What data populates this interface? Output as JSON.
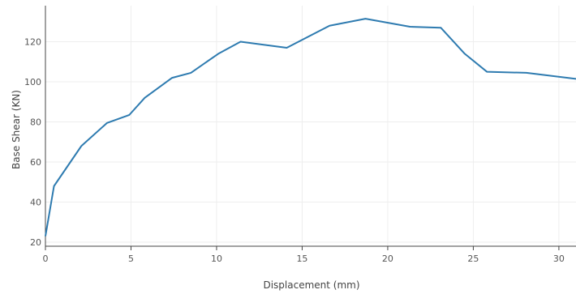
{
  "chart_data": {
    "type": "line",
    "title": "",
    "xlabel": "Displacement (mm)",
    "ylabel": "Base Shear (KN)",
    "xlim": [
      0,
      31
    ],
    "ylim": [
      18,
      138
    ],
    "x_ticks": [
      0,
      5,
      10,
      15,
      20,
      25,
      30
    ],
    "y_ticks": [
      20,
      40,
      60,
      80,
      100,
      120
    ],
    "grid": true,
    "legend": "none",
    "line_color": "#2e7bb0",
    "series": [
      {
        "x": [
          0,
          0.5,
          2.1,
          3.6,
          4.9,
          5.8,
          7.4,
          8.5,
          10.1,
          11.4,
          14.1,
          16.6,
          18.7,
          21.3,
          23.1,
          24.5,
          25.8,
          28.1,
          31
        ],
        "y": [
          23,
          48,
          68,
          79.5,
          83.5,
          92,
          102,
          104.5,
          114,
          120,
          117,
          128,
          131.5,
          127.5,
          127,
          114,
          105,
          104.5,
          101.5
        ]
      }
    ]
  }
}
